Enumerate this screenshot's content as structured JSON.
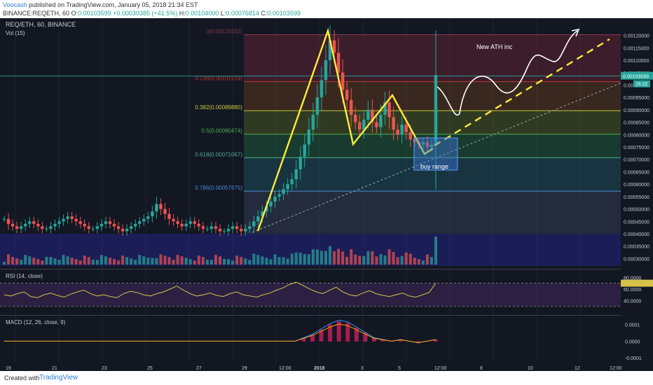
{
  "header": {
    "author": "Voocash",
    "published": "published on TradingView.com, January 05, 2018 21:34 EST",
    "symbol_line": "BINANCE:REQETH, 60",
    "o_label": "O:",
    "o_value": "0.00103599",
    "change": "+0.00030385 (+41.5%)",
    "h_label": "H:",
    "h_value": "0.00104000",
    "l_label": "L:",
    "l_value": "0.00076814",
    "c_label": "C:",
    "c_value": "0.00103599"
  },
  "panes": {
    "main_title": "REQ/ETH, 60, BINANCE",
    "vol_title": "Vol (15)",
    "rsi_title": "RSI (14, close)",
    "macd_title": "MACD (12, 26, close, 9)"
  },
  "fib_levels": [
    {
      "ratio": "0",
      "price": "0.00120332",
      "color": "#8a3a4a"
    },
    {
      "ratio": "0.236",
      "price": "0.00101519",
      "color": "#c0392b"
    },
    {
      "ratio": "0.382",
      "price": "0.00089880",
      "color": "#c8c83a"
    },
    {
      "ratio": "0.5",
      "price": "0.00080474",
      "color": "#4caf50"
    },
    {
      "ratio": "0.618",
      "price": "0.00071067",
      "color": "#4caf8a"
    },
    {
      "ratio": "0.786",
      "price": "0.00057675",
      "color": "#4a8ad0"
    }
  ],
  "annotations": {
    "ath": "New ATH inc",
    "buy_range": "buy range"
  },
  "price_axis": {
    "labels": [
      "0.00120000",
      "0.00115000",
      "0.00110000",
      "0.00105000",
      "0.00100000",
      "0.00095000",
      "0.00090000",
      "0.00085000",
      "0.00080000",
      "0.00075000",
      "0.00070000",
      "0.00065000",
      "0.00060000",
      "0.00055000",
      "0.00050000",
      "0.00045000",
      "0.00040000",
      "0.00035000",
      "0.00030000"
    ],
    "last_price": "0.00103599",
    "last_vol": "26.02"
  },
  "rsi_axis": [
    "80.0000",
    "60.0000",
    "40.0000"
  ],
  "macd_axis": [
    "0.0001",
    "0.0000",
    "-0.0001"
  ],
  "time_axis": [
    "19",
    "21",
    "23",
    "25",
    "27",
    "29",
    "12:00",
    "2018",
    "3",
    "5",
    "12:00",
    "8",
    "10",
    "12",
    "12:00"
  ],
  "footer": {
    "created": "Created with",
    "brand": "TradingView"
  },
  "colors": {
    "up": "#26a69a",
    "down": "#ef5350",
    "yellow": "#ffeb3b",
    "rsi": "#d4c24a",
    "macd": "#2196f3",
    "signal": "#ff9800",
    "hist": "#e91e63"
  },
  "chart_data": {
    "type": "candlestick",
    "title": "REQ/ETH, 60, BINANCE",
    "ylim": [
      0.00027,
      0.00123
    ],
    "series": [
      {
        "name": "REQ/ETH",
        "values": [
          0.00046,
          0.00044,
          0.00043,
          0.00042,
          0.00043,
          0.00044,
          0.00045,
          0.00044,
          0.00043,
          0.00042,
          0.00042,
          0.00043,
          0.00044,
          0.00045,
          0.00046,
          0.00047,
          0.00046,
          0.00045,
          0.00044,
          0.00043,
          0.00042,
          0.00042,
          0.00043,
          0.00044,
          0.00045,
          0.00044,
          0.00043,
          0.00042,
          0.00041,
          0.00042,
          0.00043,
          0.00044,
          0.00045,
          0.00046,
          0.00047,
          0.00049,
          0.00052,
          0.0005,
          0.00048,
          0.00046,
          0.00045,
          0.00044,
          0.00043,
          0.00044,
          0.00045,
          0.00044,
          0.00043,
          0.00042,
          0.00042,
          0.00043,
          0.00042,
          0.00041,
          0.00041,
          0.00042,
          0.00043,
          0.00042,
          0.00041,
          0.00042,
          0.00043,
          0.00045,
          0.00047,
          0.00049,
          0.00051,
          0.00053,
          0.00055,
          0.00056,
          0.00058,
          0.0006,
          0.00062,
          0.00066,
          0.00071,
          0.00076,
          0.00082,
          0.00088,
          0.00095,
          0.00102,
          0.0011,
          0.00118,
          0.00113,
          0.00105,
          0.00098,
          0.00094,
          0.00088,
          0.00085,
          0.00082,
          0.00086,
          0.0009,
          0.00085,
          0.00083,
          0.00088,
          0.00093,
          0.00087,
          0.00082,
          0.0008,
          0.00084,
          0.00081,
          0.00078,
          0.00077,
          0.00076,
          0.00077,
          0.00075,
          0.00076,
          0.00104
        ]
      },
      {
        "name": "RSI (14, close)",
        "values": [
          50,
          48,
          52,
          55,
          47,
          45,
          50,
          53,
          49,
          46,
          51,
          55,
          58,
          52,
          48,
          50,
          47,
          45,
          52,
          56,
          54,
          50,
          48,
          52,
          55,
          60,
          65,
          58,
          52,
          48,
          50,
          53,
          49,
          47,
          52,
          55,
          50,
          48,
          46,
          50,
          53,
          58,
          62,
          68,
          72,
          66,
          60,
          55,
          52,
          58,
          63,
          55,
          50,
          48,
          53,
          57,
          52,
          49,
          47,
          50,
          53,
          48,
          46,
          50,
          54,
          70
        ]
      },
      {
        "name": "MACD",
        "values": [
          0,
          0,
          0,
          0,
          0,
          0,
          0,
          0,
          0,
          0,
          0,
          0,
          0,
          0,
          0,
          0,
          0,
          0,
          0,
          0,
          0,
          0,
          0,
          0,
          0,
          0,
          0,
          0,
          0,
          0,
          0,
          0,
          0,
          0,
          2e-05,
          4e-05,
          7e-05,
          0.0001,
          0.00012,
          0.00011,
          8e-05,
          5e-05,
          2e-05,
          1e-05,
          0,
          1e-05,
          0,
          -1e-05,
          0,
          1e-05
        ]
      }
    ],
    "fib_retracement": {
      "high": 0.00120332,
      "low": 0.0004,
      "levels": [
        0,
        0.236,
        0.382,
        0.5,
        0.618,
        0.786
      ]
    }
  }
}
